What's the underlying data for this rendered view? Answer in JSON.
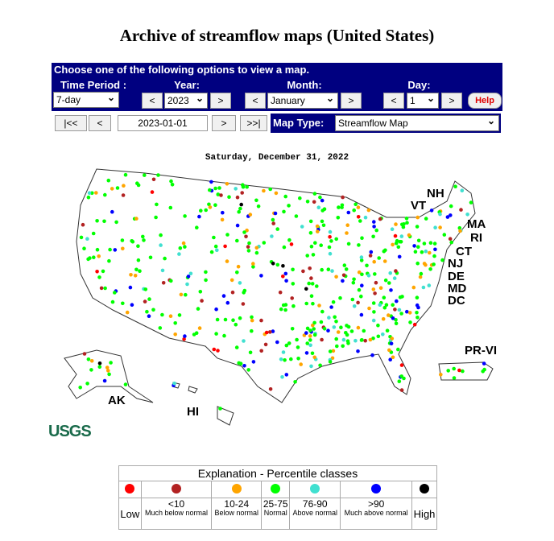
{
  "title": "Archive of streamflow maps (United States)",
  "controls": {
    "banner": "Choose one of the following options to view a map.",
    "time_period": {
      "label": "Time Period :",
      "value": "7-day"
    },
    "year": {
      "label": "Year:",
      "prev": "<",
      "value": "2023",
      "next": ">"
    },
    "month": {
      "label": "Month:",
      "prev": "<",
      "value": "January",
      "next": ">"
    },
    "day": {
      "label": "Day:",
      "prev": "<",
      "value": "1",
      "next": ">"
    },
    "help": "Help",
    "nav": {
      "first": "|<<",
      "prev": "<",
      "date": "2023-01-01",
      "next": ">",
      "last": ">>|"
    },
    "map_type": {
      "label": "Map Type:",
      "value": "Streamflow Map"
    }
  },
  "map": {
    "date": "Saturday, December 31, 2022",
    "state_labels": [
      "NH",
      "VT",
      "MA",
      "RI",
      "CT",
      "NJ",
      "DE",
      "MD",
      "DC",
      "PR-VI",
      "AK",
      "HI"
    ]
  },
  "logo": "USGS",
  "legend": {
    "title": "Explanation - Percentile classes",
    "classes": [
      {
        "label": "Low",
        "color": "#ff0000"
      },
      {
        "range": "<10",
        "description": "Much below normal",
        "color": "#b22222"
      },
      {
        "range": "10-24",
        "description": "Below normal",
        "color": "#ffa500"
      },
      {
        "range": "25-75",
        "description": "Normal",
        "color": "#00ff00"
      },
      {
        "range": "76-90",
        "description": "Above normal",
        "color": "#40e0d0"
      },
      {
        "range": ">90",
        "description": "Much above normal",
        "color": "#0000ff"
      },
      {
        "label": "High",
        "color": "#000000"
      }
    ]
  }
}
